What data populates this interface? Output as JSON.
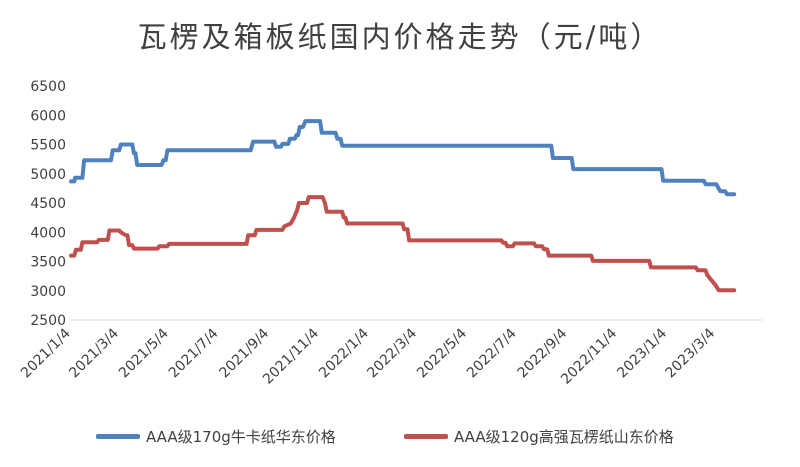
{
  "chart_data": {
    "type": "line",
    "title": "瓦楞及箱板纸国内价格走势（元/吨）",
    "ylim": [
      2500,
      6500
    ],
    "yticks": [
      2500,
      3000,
      3500,
      4000,
      4500,
      5000,
      5500,
      6000,
      6500
    ],
    "xlim": [
      "2021-01-04",
      "2023-04-30"
    ],
    "xticks": [
      "2021/1/4",
      "2021/3/4",
      "2021/5/4",
      "2021/7/4",
      "2021/9/4",
      "2021/11/4",
      "2022/1/4",
      "2022/3/4",
      "2022/5/4",
      "2022/7/4",
      "2022/9/4",
      "2022/11/4",
      "2023/1/4",
      "2023/3/4"
    ],
    "grid": false,
    "legend_position": "bottom",
    "series": [
      {
        "name": "AAA级170g牛卡纸华东价格",
        "color": "#4F81BD",
        "points": [
          [
            "2021-01-04",
            4870
          ],
          [
            "2021-01-08",
            4870
          ],
          [
            "2021-01-09",
            4930
          ],
          [
            "2021-01-18",
            4930
          ],
          [
            "2021-01-20",
            5230
          ],
          [
            "2021-02-22",
            5230
          ],
          [
            "2021-02-24",
            5400
          ],
          [
            "2021-03-04",
            5400
          ],
          [
            "2021-03-06",
            5500
          ],
          [
            "2021-03-20",
            5500
          ],
          [
            "2021-03-22",
            5350
          ],
          [
            "2021-03-24",
            5350
          ],
          [
            "2021-03-26",
            5150
          ],
          [
            "2021-04-25",
            5150
          ],
          [
            "2021-04-27",
            5230
          ],
          [
            "2021-04-30",
            5230
          ],
          [
            "2021-05-02",
            5400
          ],
          [
            "2021-08-12",
            5400
          ],
          [
            "2021-08-13",
            5450
          ],
          [
            "2021-08-15",
            5550
          ],
          [
            "2021-09-10",
            5550
          ],
          [
            "2021-09-12",
            5460
          ],
          [
            "2021-09-18",
            5460
          ],
          [
            "2021-09-20",
            5510
          ],
          [
            "2021-09-27",
            5510
          ],
          [
            "2021-09-29",
            5600
          ],
          [
            "2021-10-05",
            5600
          ],
          [
            "2021-10-07",
            5660
          ],
          [
            "2021-10-09",
            5660
          ],
          [
            "2021-10-11",
            5800
          ],
          [
            "2021-10-15",
            5800
          ],
          [
            "2021-10-18",
            5900
          ],
          [
            "2021-11-05",
            5900
          ],
          [
            "2021-11-07",
            5700
          ],
          [
            "2021-11-24",
            5700
          ],
          [
            "2021-11-26",
            5600
          ],
          [
            "2021-11-30",
            5600
          ],
          [
            "2021-12-02",
            5480
          ],
          [
            "2022-08-15",
            5480
          ],
          [
            "2022-08-17",
            5270
          ],
          [
            "2022-09-09",
            5270
          ],
          [
            "2022-09-11",
            5080
          ],
          [
            "2022-12-10",
            5080
          ],
          [
            "2022-12-12",
            5080
          ],
          [
            "2022-12-28",
            5080
          ],
          [
            "2022-12-30",
            4880
          ],
          [
            "2023-02-18",
            4880
          ],
          [
            "2023-02-20",
            4820
          ],
          [
            "2023-03-05",
            4820
          ],
          [
            "2023-03-10",
            4700
          ],
          [
            "2023-03-16",
            4700
          ],
          [
            "2023-03-18",
            4650
          ],
          [
            "2023-03-27",
            4650
          ]
        ]
      },
      {
        "name": "AAA级120g高强瓦楞纸山东价格",
        "color": "#C0504D",
        "points": [
          [
            "2021-01-04",
            3600
          ],
          [
            "2021-01-08",
            3600
          ],
          [
            "2021-01-10",
            3700
          ],
          [
            "2021-01-16",
            3700
          ],
          [
            "2021-01-18",
            3830
          ],
          [
            "2021-02-05",
            3830
          ],
          [
            "2021-02-07",
            3870
          ],
          [
            "2021-02-18",
            3870
          ],
          [
            "2021-02-20",
            4030
          ],
          [
            "2021-03-04",
            4030
          ],
          [
            "2021-03-06",
            4000
          ],
          [
            "2021-03-12",
            3950
          ],
          [
            "2021-03-14",
            3950
          ],
          [
            "2021-03-16",
            3780
          ],
          [
            "2021-03-20",
            3780
          ],
          [
            "2021-03-22",
            3720
          ],
          [
            "2021-04-20",
            3720
          ],
          [
            "2021-04-22",
            3760
          ],
          [
            "2021-05-02",
            3760
          ],
          [
            "2021-05-04",
            3800
          ],
          [
            "2021-08-07",
            3800
          ],
          [
            "2021-08-09",
            3950
          ],
          [
            "2021-08-17",
            3950
          ],
          [
            "2021-08-19",
            4040
          ],
          [
            "2021-09-20",
            4040
          ],
          [
            "2021-09-22",
            4100
          ],
          [
            "2021-09-30",
            4150
          ],
          [
            "2021-10-04",
            4250
          ],
          [
            "2021-10-08",
            4380
          ],
          [
            "2021-10-10",
            4500
          ],
          [
            "2021-10-20",
            4500
          ],
          [
            "2021-10-22",
            4600
          ],
          [
            "2021-11-08",
            4600
          ],
          [
            "2021-11-11",
            4500
          ],
          [
            "2021-11-13",
            4350
          ],
          [
            "2021-12-02",
            4350
          ],
          [
            "2021-12-04",
            4250
          ],
          [
            "2021-12-06",
            4250
          ],
          [
            "2021-12-08",
            4150
          ],
          [
            "2022-02-14",
            4150
          ],
          [
            "2022-02-16",
            4050
          ],
          [
            "2022-02-20",
            4050
          ],
          [
            "2022-02-22",
            3860
          ],
          [
            "2022-06-15",
            3860
          ],
          [
            "2022-06-17",
            3820
          ],
          [
            "2022-06-20",
            3820
          ],
          [
            "2022-06-22",
            3760
          ],
          [
            "2022-06-29",
            3760
          ],
          [
            "2022-07-01",
            3810
          ],
          [
            "2022-07-25",
            3810
          ],
          [
            "2022-07-27",
            3760
          ],
          [
            "2022-08-04",
            3760
          ],
          [
            "2022-08-06",
            3710
          ],
          [
            "2022-08-10",
            3710
          ],
          [
            "2022-08-12",
            3600
          ],
          [
            "2022-10-03",
            3600
          ],
          [
            "2022-10-05",
            3510
          ],
          [
            "2022-12-13",
            3510
          ],
          [
            "2022-12-15",
            3400
          ],
          [
            "2023-02-08",
            3400
          ],
          [
            "2023-02-10",
            3350
          ],
          [
            "2023-02-20",
            3350
          ],
          [
            "2023-02-22",
            3270
          ],
          [
            "2023-02-26",
            3200
          ],
          [
            "2023-03-04",
            3100
          ],
          [
            "2023-03-08",
            3010
          ],
          [
            "2023-03-27",
            3010
          ]
        ]
      }
    ]
  }
}
